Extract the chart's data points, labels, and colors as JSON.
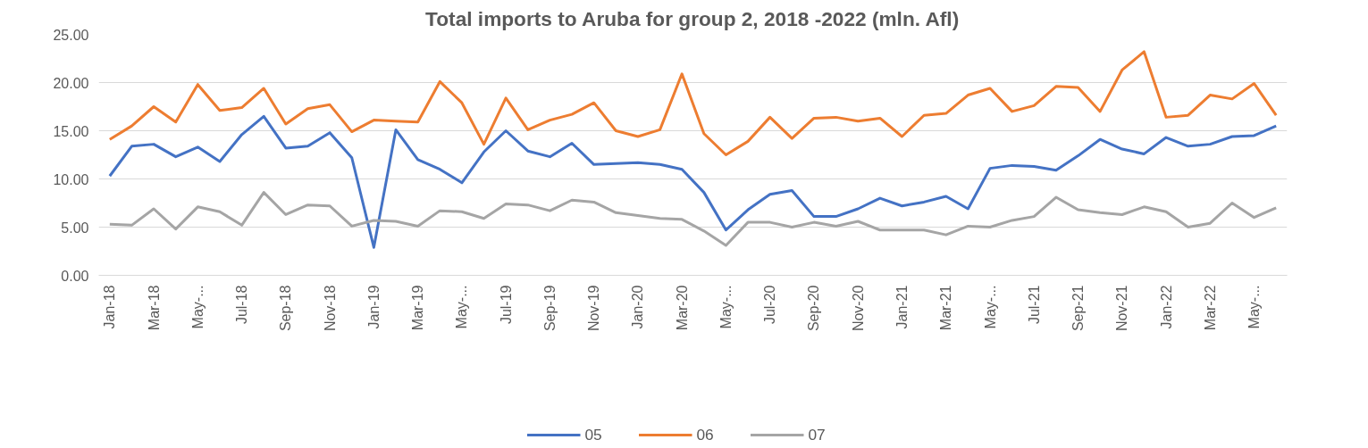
{
  "chart_data": {
    "type": "line",
    "title": "Total imports to Aruba for group 2, 2018 -2022 (mln. Afl)",
    "categories": [
      "Jan-18",
      null,
      "Mar-18",
      null,
      "May-...",
      null,
      "Jul-18",
      null,
      "Sep-18",
      null,
      "Nov-18",
      null,
      "Jan-19",
      null,
      "Mar-19",
      null,
      "May-...",
      null,
      "Jul-19",
      null,
      "Sep-19",
      null,
      "Nov-19",
      null,
      "Jan-20",
      null,
      "Mar-20",
      null,
      "May-...",
      null,
      "Jul-20",
      null,
      "Sep-20",
      null,
      "Nov-20",
      null,
      "Jan-21",
      null,
      "Mar-21",
      null,
      "May-...",
      null,
      "Jul-21",
      null,
      "Sep-21",
      null,
      "Nov-21",
      null,
      "Jan-22",
      null,
      "Mar-22",
      null,
      "May-...",
      null
    ],
    "series": [
      {
        "name": "05",
        "color": "#4472c4",
        "values": [
          10.3,
          13.4,
          13.6,
          12.3,
          13.3,
          11.8,
          14.6,
          16.5,
          13.2,
          13.4,
          14.8,
          12.2,
          2.9,
          15.1,
          12.0,
          11.0,
          9.6,
          12.8,
          15.0,
          12.9,
          12.3,
          13.7,
          11.5,
          11.6,
          11.7,
          11.5,
          11.0,
          8.6,
          4.7,
          6.8,
          8.4,
          8.8,
          6.1,
          6.1,
          6.9,
          8.0,
          7.2,
          7.6,
          8.2,
          6.9,
          11.1,
          11.4,
          11.3,
          10.9,
          12.4,
          14.1,
          13.1,
          12.6,
          14.3,
          13.4,
          13.6,
          14.4,
          14.5,
          15.5
        ]
      },
      {
        "name": "06",
        "color": "#ed7d31",
        "values": [
          14.1,
          15.5,
          17.5,
          15.9,
          19.8,
          17.1,
          17.4,
          19.4,
          15.7,
          17.3,
          17.7,
          14.9,
          16.1,
          16.0,
          15.9,
          20.1,
          17.9,
          13.6,
          18.4,
          15.1,
          16.1,
          16.7,
          17.9,
          15.0,
          14.4,
          15.1,
          20.9,
          14.7,
          12.5,
          13.9,
          16.4,
          14.2,
          16.3,
          16.4,
          16.0,
          16.3,
          14.4,
          16.6,
          16.8,
          18.7,
          19.4,
          17.0,
          17.6,
          19.6,
          19.5,
          17.0,
          21.3,
          23.2,
          16.4,
          16.6,
          18.7,
          18.3,
          19.9,
          16.6
        ]
      },
      {
        "name": "07",
        "color": "#a5a5a5",
        "values": [
          5.3,
          5.2,
          6.9,
          4.8,
          7.1,
          6.6,
          5.2,
          8.6,
          6.3,
          7.3,
          7.2,
          5.1,
          5.7,
          5.6,
          5.1,
          6.7,
          6.6,
          5.9,
          7.4,
          7.3,
          6.7,
          7.8,
          7.6,
          6.5,
          6.2,
          5.9,
          5.8,
          4.6,
          3.1,
          5.5,
          5.5,
          5.0,
          5.5,
          5.1,
          5.6,
          4.7,
          4.7,
          4.7,
          4.2,
          5.1,
          5.0,
          5.7,
          6.1,
          8.1,
          6.8,
          6.5,
          6.3,
          7.1,
          6.6,
          5.0,
          5.4,
          7.5,
          6.0,
          7.0
        ]
      }
    ],
    "ylim": [
      0,
      25
    ],
    "yticks": [
      {
        "value": 0,
        "label": "0.00"
      },
      {
        "value": 5,
        "label": "5.00"
      },
      {
        "value": 10,
        "label": "10.00"
      },
      {
        "value": 15,
        "label": "15.00"
      },
      {
        "value": 20,
        "label": "20.00"
      },
      {
        "value": 25,
        "label": "25.00"
      }
    ],
    "grid": "y",
    "legend": "bottom",
    "marker": "none",
    "line_style": "solid"
  }
}
